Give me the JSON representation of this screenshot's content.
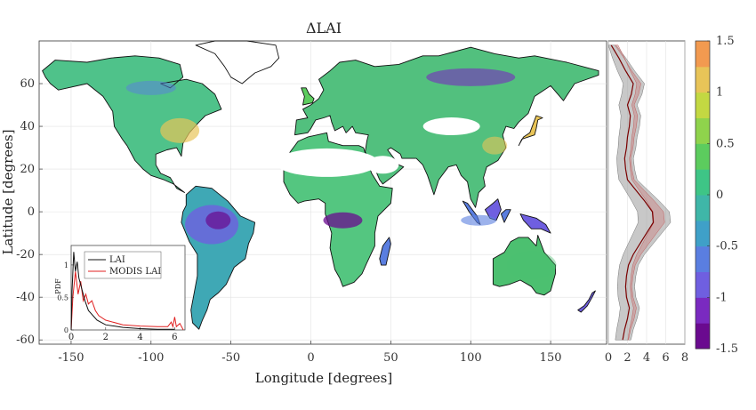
{
  "title": "ΔLAI",
  "map": {
    "xlabel": "Longitude [degrees]",
    "ylabel": "Latitude [degrees]",
    "xlim": [
      -170,
      185
    ],
    "ylim": [
      -62,
      80
    ],
    "xticks": [
      -150,
      -100,
      -50,
      0,
      50,
      100,
      150
    ],
    "yticks": [
      -60,
      -40,
      -20,
      0,
      20,
      40,
      60
    ]
  },
  "colorbar": {
    "min": -1.5,
    "max": 1.5,
    "ticks": [
      "1.5",
      "1",
      "0.5",
      "0",
      "-0.5",
      "-1",
      "-1.5"
    ],
    "colors": [
      "#6a0a8f",
      "#7a2ac0",
      "#6f5fe0",
      "#5a7ee0",
      "#3fa0c8",
      "#3fb6a8",
      "#3ec586",
      "#5ccc5e",
      "#8fd34c",
      "#c3d842",
      "#e8c458",
      "#f29a50"
    ]
  },
  "profile": {
    "xticks": [
      "0",
      "2",
      "4",
      "6",
      "8"
    ],
    "xlim": [
      0,
      8
    ]
  },
  "inset": {
    "ylabel": "PDF",
    "xticks": [
      "0",
      "2",
      "4",
      "6"
    ],
    "yticks": [
      "0",
      "0.5",
      "1"
    ],
    "legend": [
      {
        "name": "LAI",
        "color": "#111111"
      },
      {
        "name": "MODIS LAI",
        "color": "#e02020"
      }
    ]
  }
}
